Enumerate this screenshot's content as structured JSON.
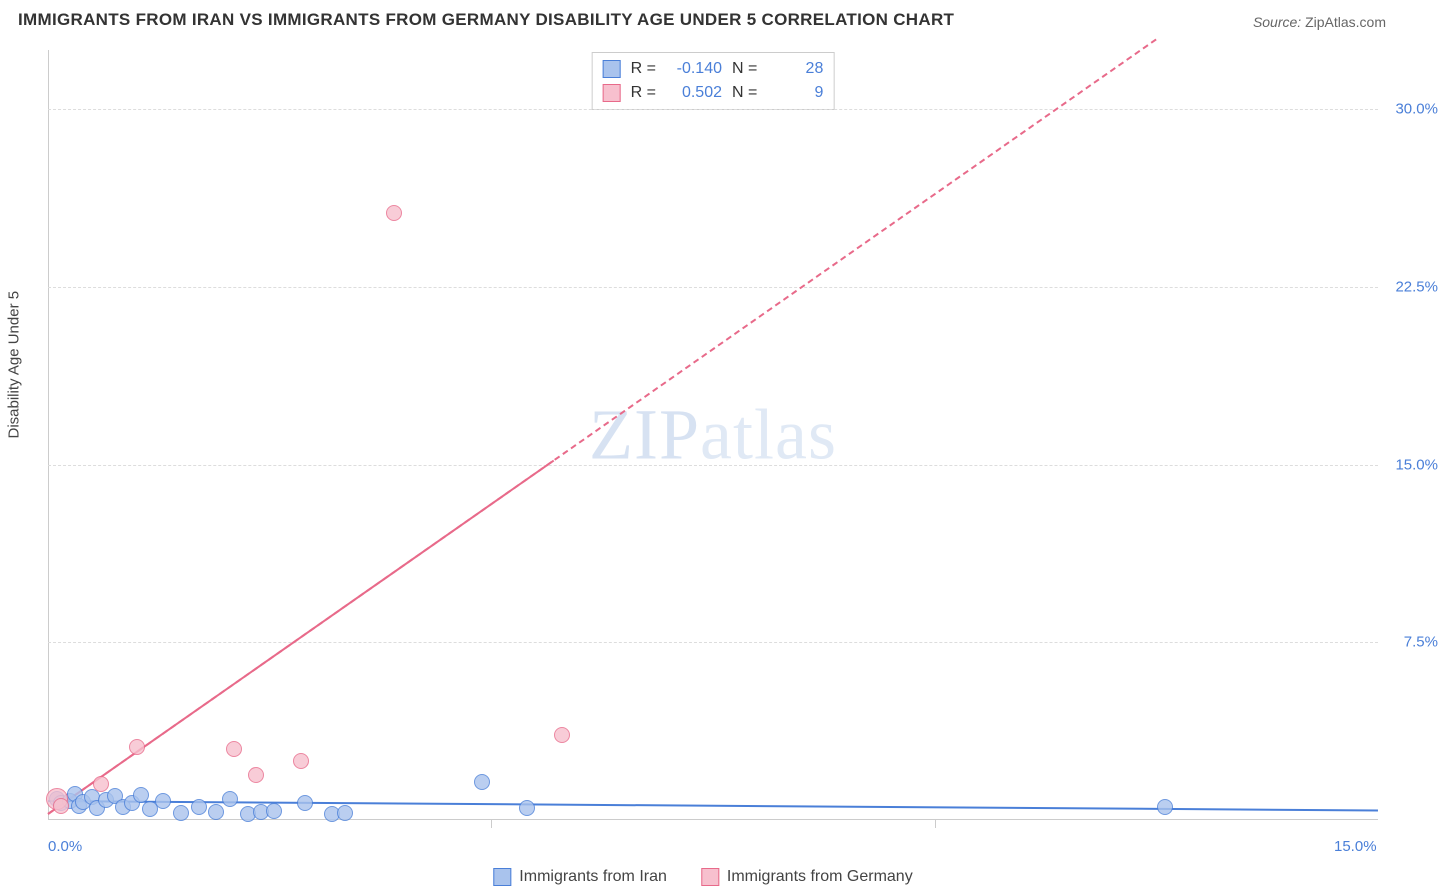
{
  "title": "IMMIGRANTS FROM IRAN VS IMMIGRANTS FROM GERMANY DISABILITY AGE UNDER 5 CORRELATION CHART",
  "source_label": "Source:",
  "source_value": "ZipAtlas.com",
  "y_axis_title": "Disability Age Under 5",
  "watermark": "ZIPatlas",
  "chart": {
    "type": "scatter",
    "background_color": "#ffffff",
    "grid_color": "#dddddd",
    "axis_color": "#cccccc",
    "tick_label_color": "#4a7fd8",
    "tick_fontsize": 15,
    "xlim": [
      0.0,
      15.0
    ],
    "ylim": [
      0.0,
      32.5
    ],
    "x_ticks": [
      0.0,
      15.0
    ],
    "x_tick_labels": [
      "0.0%",
      "15.0%"
    ],
    "x_tick_minor": [
      5.0,
      10.0
    ],
    "y_ticks": [
      7.5,
      15.0,
      22.5,
      30.0
    ],
    "y_tick_labels": [
      "7.5%",
      "15.0%",
      "22.5%",
      "30.0%"
    ],
    "marker_radius": 8,
    "marker_stroke_width": 1.5,
    "marker_fill_opacity": 0.35,
    "series": [
      {
        "name": "Immigrants from Iran",
        "color": "#4a7fd8",
        "fill": "#a9c3ed",
        "r_value": "-0.140",
        "n_value": "28",
        "trend_solid": true,
        "trend_width": 2.5,
        "trend_from": [
          0.0,
          0.85
        ],
        "trend_to": [
          15.0,
          0.45
        ],
        "points": [
          [
            0.1,
            0.9
          ],
          [
            0.15,
            0.7
          ],
          [
            0.25,
            0.8
          ],
          [
            0.3,
            1.1
          ],
          [
            0.35,
            0.6
          ],
          [
            0.4,
            0.75
          ],
          [
            0.5,
            0.95
          ],
          [
            0.55,
            0.5
          ],
          [
            0.65,
            0.85
          ],
          [
            0.75,
            1.0
          ],
          [
            0.85,
            0.55
          ],
          [
            0.95,
            0.7
          ],
          [
            1.05,
            1.05
          ],
          [
            1.15,
            0.45
          ],
          [
            1.3,
            0.8
          ],
          [
            1.5,
            0.3
          ],
          [
            1.7,
            0.55
          ],
          [
            1.9,
            0.35
          ],
          [
            2.05,
            0.9
          ],
          [
            2.25,
            0.25
          ],
          [
            2.4,
            0.35
          ],
          [
            2.55,
            0.4
          ],
          [
            2.9,
            0.7
          ],
          [
            3.2,
            0.25
          ],
          [
            3.35,
            0.3
          ],
          [
            4.9,
            1.6
          ],
          [
            5.4,
            0.5
          ],
          [
            12.6,
            0.55
          ]
        ]
      },
      {
        "name": "Immigrants from Germany",
        "color": "#e86a8a",
        "fill": "#f7c0ce",
        "r_value": "0.502",
        "n_value": "9",
        "trend_solid": false,
        "trend_width": 2,
        "trend_from": [
          0.0,
          0.3
        ],
        "trend_to": [
          12.5,
          33.0
        ],
        "points": [
          [
            0.1,
            0.9
          ],
          [
            0.15,
            0.6
          ],
          [
            0.6,
            1.5
          ],
          [
            1.0,
            3.1
          ],
          [
            2.1,
            3.0
          ],
          [
            2.35,
            1.9
          ],
          [
            2.85,
            2.5
          ],
          [
            3.9,
            25.6
          ],
          [
            5.8,
            3.6
          ]
        ]
      }
    ]
  },
  "stats_legend": {
    "r_label": "R =",
    "n_label": "N ="
  },
  "bottom_legend": {
    "items": [
      "Immigrants from Iran",
      "Immigrants from Germany"
    ]
  }
}
